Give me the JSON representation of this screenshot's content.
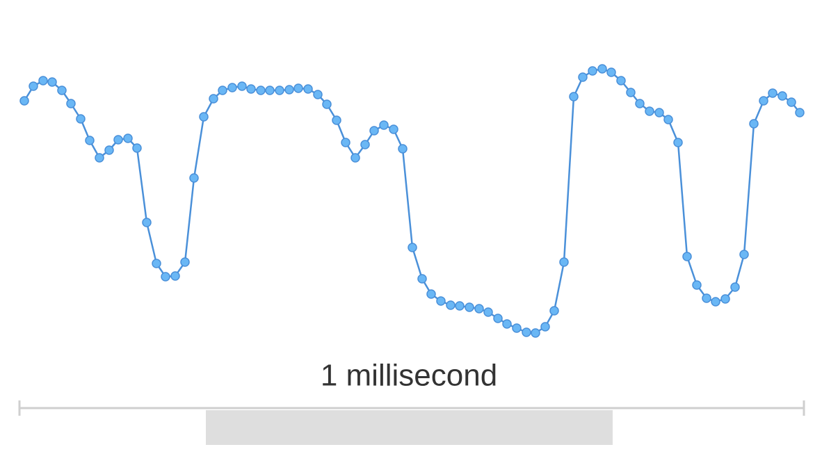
{
  "scale_bar": {
    "label": "1 millisecond"
  }
}
